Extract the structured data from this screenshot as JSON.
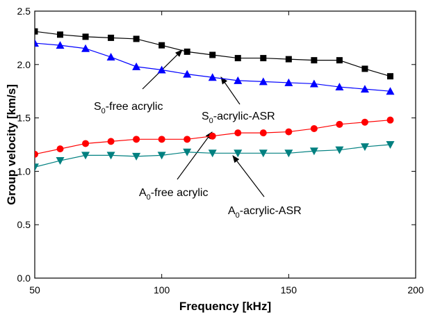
{
  "chart_data": {
    "type": "line",
    "x_label": "Frequency [kHz]",
    "y_label": "Group velocity [km/s]",
    "x": [
      50,
      60,
      70,
      80,
      90,
      100,
      110,
      120,
      130,
      140,
      150,
      160,
      170,
      180,
      190
    ],
    "series": [
      {
        "color": "#000000",
        "marker": "square",
        "values": [
          2.31,
          2.28,
          2.26,
          2.25,
          2.24,
          2.18,
          2.12,
          2.09,
          2.06,
          2.06,
          2.05,
          2.04,
          2.04,
          1.96,
          1.89
        ]
      },
      {
        "color": "#0000ff",
        "marker": "triangle-up",
        "values": [
          2.2,
          2.18,
          2.15,
          2.07,
          1.98,
          1.95,
          1.91,
          1.88,
          1.85,
          1.84,
          1.83,
          1.82,
          1.79,
          1.77,
          1.75
        ]
      },
      {
        "color": "#ff0000",
        "marker": "circle",
        "values": [
          1.16,
          1.21,
          1.26,
          1.28,
          1.3,
          1.3,
          1.3,
          1.33,
          1.36,
          1.36,
          1.37,
          1.4,
          1.44,
          1.46,
          1.48
        ]
      },
      {
        "color": "#008080",
        "marker": "triangle-down",
        "values": [
          1.04,
          1.1,
          1.15,
          1.15,
          1.14,
          1.15,
          1.18,
          1.17,
          1.17,
          1.17,
          1.17,
          1.19,
          1.2,
          1.23,
          1.25
        ]
      }
    ],
    "xlim": [
      50,
      200
    ],
    "xticks": [
      50,
      100,
      150,
      200
    ],
    "ylim": [
      0,
      2.5
    ],
    "yticks": [
      {
        "value": 0,
        "label": "0.0"
      },
      0.5,
      {
        "value": 1,
        "label": "1.0"
      },
      1.5,
      {
        "value": 2,
        "label": "2.0"
      },
      2.5
    ],
    "annotations": [
      {
        "base": "S",
        "sub": "0",
        "rest": "-free acrylic"
      },
      {
        "base": "S",
        "sub": "0",
        "rest": "-acrylic-ASR"
      },
      {
        "base": "A",
        "sub": "0",
        "rest": "-free acrylic"
      },
      {
        "base": "A",
        "sub": "0",
        "rest": "-acrylic-ASR"
      }
    ]
  }
}
